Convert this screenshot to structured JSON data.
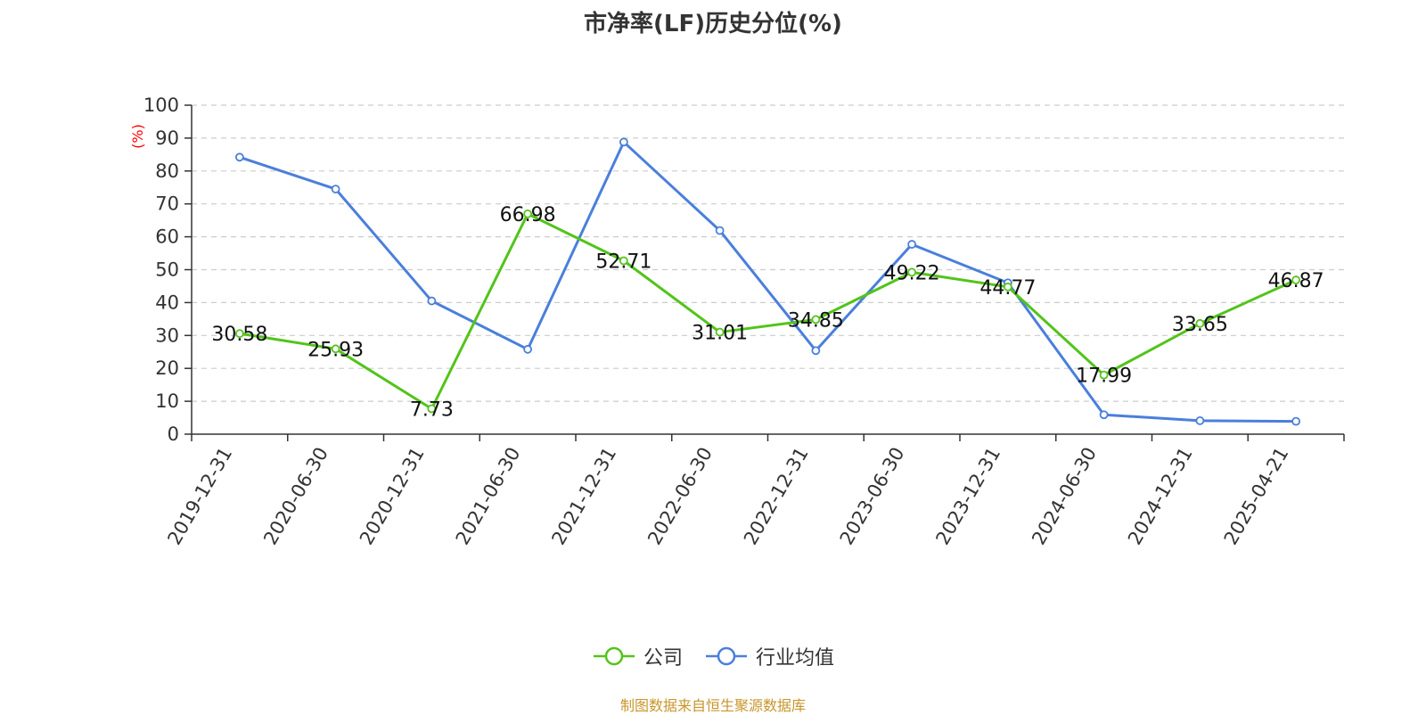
{
  "colors": {
    "company": "#52c41a",
    "industry": "#4a7fdc",
    "axis_unit": "#ff0000",
    "grid": "#cccccc",
    "text": "#333333",
    "source": "#c8962b"
  },
  "chart_data": {
    "type": "line",
    "title": "市净率(LF)历史分位(%)",
    "ylabel": "(%)",
    "xlabel": "",
    "ylim": [
      0,
      100
    ],
    "yticks": [
      0,
      10,
      20,
      30,
      40,
      50,
      60,
      70,
      80,
      90,
      100
    ],
    "grid": true,
    "legend_position": "bottom",
    "categories": [
      "2019-12-31",
      "2020-06-30",
      "2020-12-31",
      "2021-06-30",
      "2021-12-31",
      "2022-06-30",
      "2022-12-31",
      "2023-06-30",
      "2023-12-31",
      "2024-06-30",
      "2024-12-31",
      "2025-04-21"
    ],
    "series": [
      {
        "name": "公司",
        "values": [
          30.58,
          25.93,
          7.73,
          66.98,
          52.71,
          31.01,
          34.85,
          49.22,
          44.77,
          17.99,
          33.65,
          46.87
        ],
        "data_labels": [
          "30.58",
          "25.93",
          "7.73",
          "66.98",
          "52.71",
          "31.01",
          "34.85",
          "49.22",
          "44.77",
          "17.99",
          "33.65",
          "46.87"
        ]
      },
      {
        "name": "行业均值",
        "values": [
          84.2,
          74.5,
          40.5,
          25.8,
          88.8,
          61.9,
          25.4,
          57.7,
          46.0,
          5.9,
          4.1,
          3.9
        ]
      }
    ]
  },
  "footer": {
    "source_text": "制图数据来自恒生聚源数据库"
  }
}
